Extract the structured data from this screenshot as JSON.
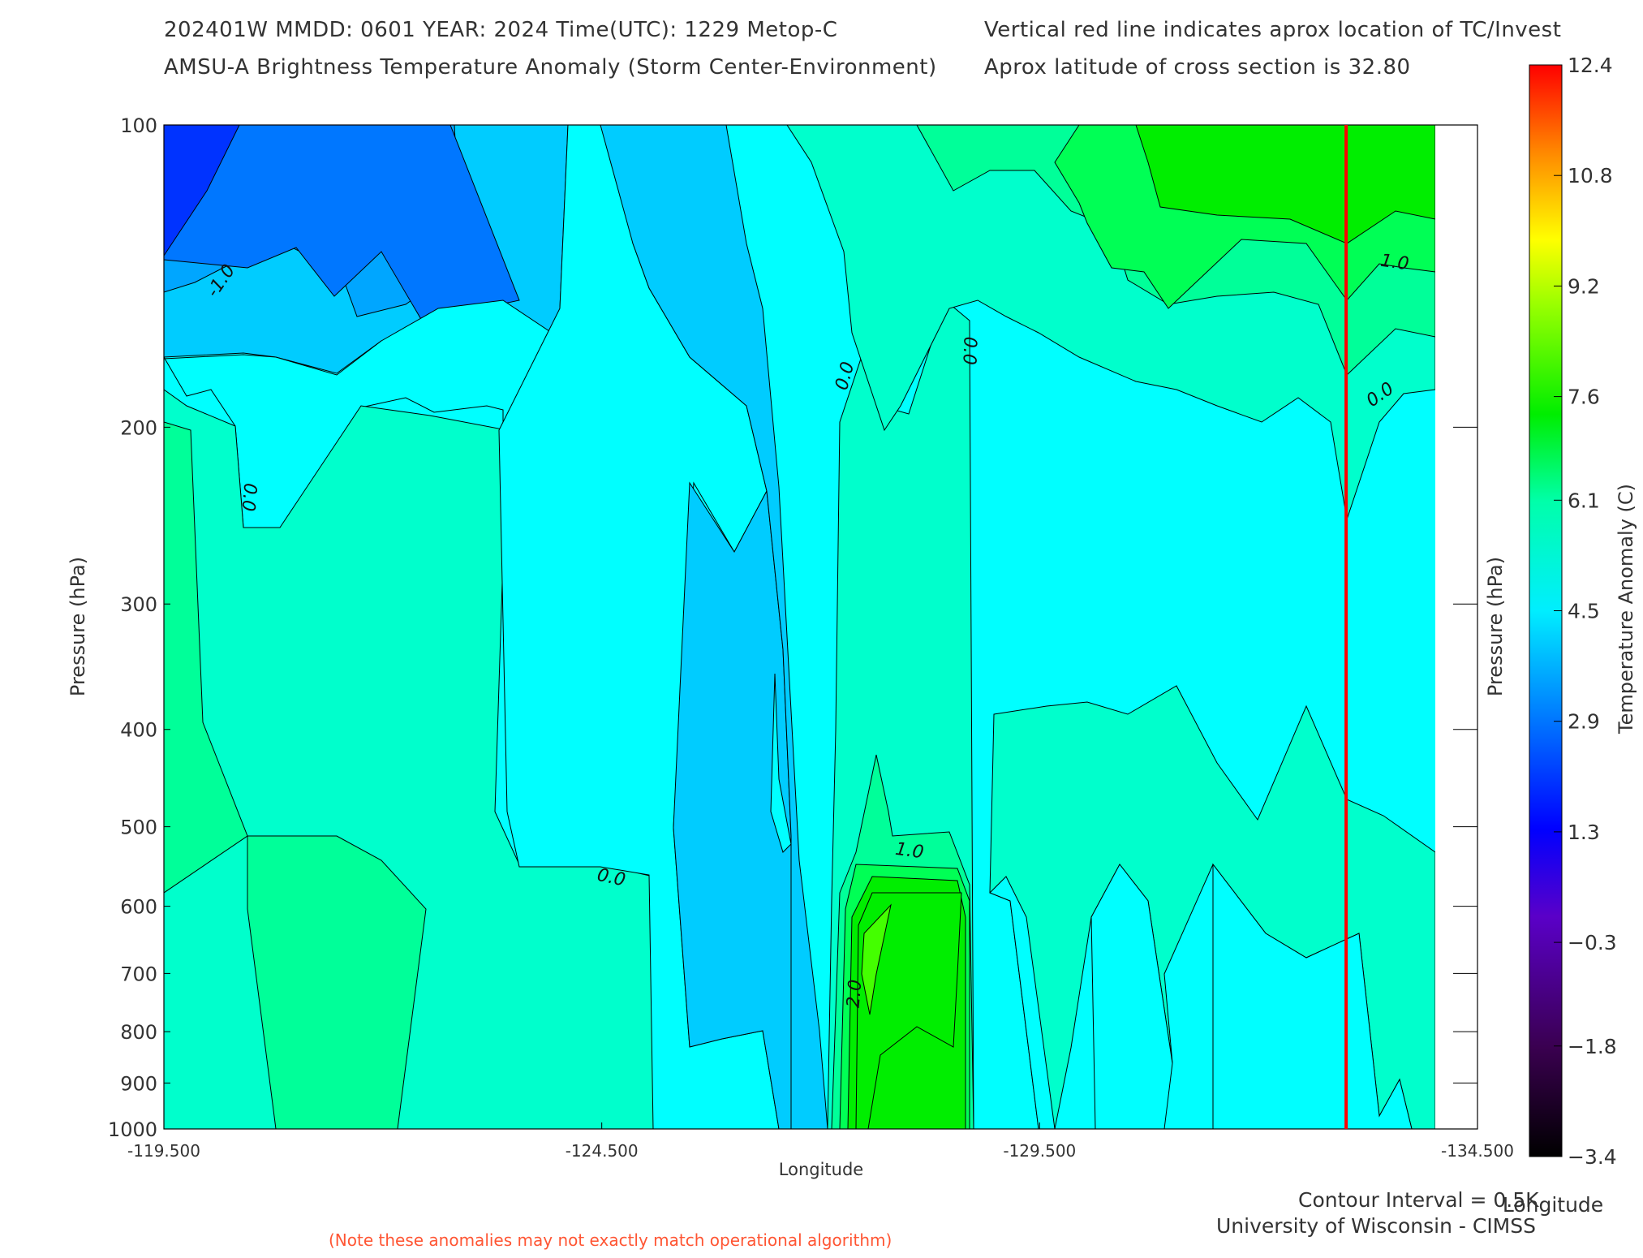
{
  "header": {
    "line1_left": "202401W  MMDD: 0601 YEAR: 2024 Time(UTC): 1229 Metop-C",
    "line2_left": "AMSU-A Brightness Temperature Anomaly (Storm Center-Environment)",
    "line1_right": "Vertical red line indicates aprox location of TC/Invest",
    "line2_right": "Aprox latitude of cross section is 32.80"
  },
  "footer": {
    "contour_interval": "Contour Interval = 0.5K",
    "credit": "University of Wisconsin - CIMSS",
    "note": "(Note these anomalies may not exactly match operational algorithm)"
  },
  "chart_data": {
    "type": "heatmap",
    "xlabel": "Longitude",
    "xlabel_right": "Longitude",
    "ylabel": "Pressure (hPa)",
    "ylabel_right": "Pressure (hPa)",
    "x_ticks": [
      "-119.500",
      "-124.500",
      "-129.500",
      "-134.500"
    ],
    "x_tick_values": [
      -119.5,
      -124.5,
      -129.5,
      -134.5
    ],
    "xlim": [
      -119.5,
      -134.5
    ],
    "y_ticks": [
      "100",
      "200",
      "300",
      "400",
      "500",
      "600",
      "700",
      "800",
      "900",
      "1000"
    ],
    "y_tick_values": [
      100,
      200,
      300,
      400,
      500,
      600,
      700,
      800,
      900,
      1000
    ],
    "ylim": [
      100,
      1000
    ],
    "y_scale": "log",
    "storm_center_longitude": -133.0,
    "storm_line_color": "#ff0000",
    "colorbar": {
      "title": "Temperature Anomaly (C)",
      "ticks": [
        "12.4",
        "10.8",
        "9.2",
        "7.6",
        "6.1",
        "4.5",
        "2.9",
        "1.3",
        "-0.3",
        "-1.8",
        "-3.4"
      ],
      "min": -3.4,
      "max": 12.4
    },
    "contour_labels": [
      "-1.0",
      "0.0",
      "0.0",
      "0.0",
      "0.0",
      "1.0",
      "1.0",
      "2.0",
      "0.0",
      "0.0"
    ],
    "levels": [
      {
        "value": -2.0,
        "color": "#0033ff"
      },
      {
        "value": -1.5,
        "color": "#0077ff"
      },
      {
        "value": -1.0,
        "color": "#00a6ff"
      },
      {
        "value": -0.5,
        "color": "#00ccff"
      },
      {
        "value": 0.0,
        "color": "#00ffff"
      },
      {
        "value": 0.5,
        "color": "#00ffcc"
      },
      {
        "value": 1.0,
        "color": "#00ff99"
      },
      {
        "value": 1.5,
        "color": "#00ff55"
      },
      {
        "value": 2.0,
        "color": "#00ee00"
      },
      {
        "value": 2.5,
        "color": "#44ff00"
      }
    ]
  }
}
